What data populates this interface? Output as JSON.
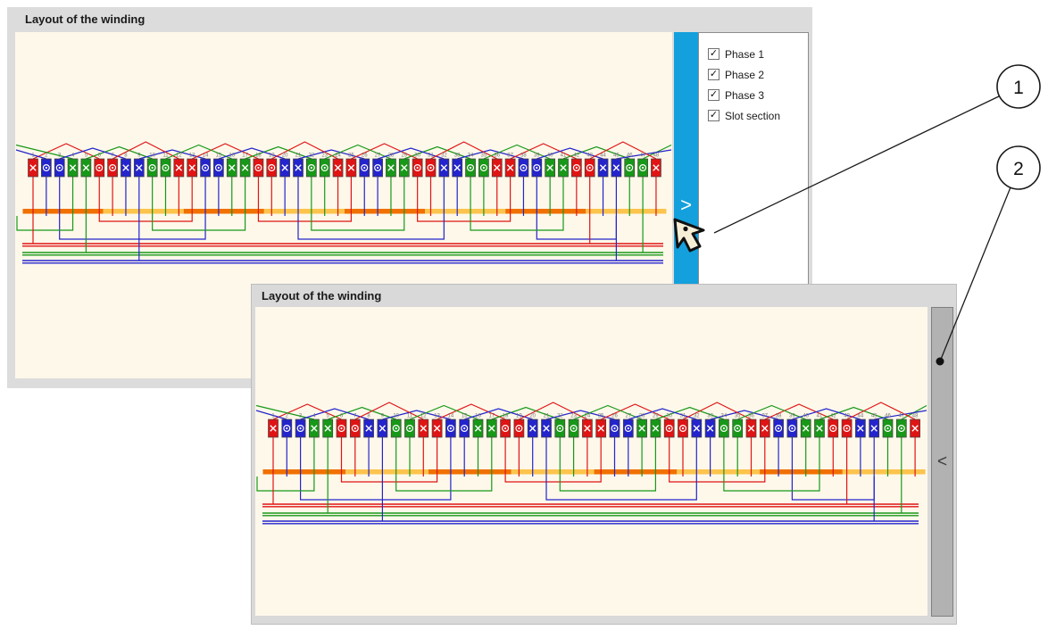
{
  "window1": {
    "title": "Layout of the winding",
    "expander_chevron": ">",
    "legend": {
      "items": [
        {
          "label": "Phase 1",
          "checked": true
        },
        {
          "label": "Phase 2",
          "checked": true
        },
        {
          "label": "Phase 3",
          "checked": true
        },
        {
          "label": "Slot section",
          "checked": true
        }
      ]
    }
  },
  "window2": {
    "title": "Layout of the winding",
    "collapse_chevron": "<"
  },
  "callouts": [
    {
      "label": "1"
    },
    {
      "label": "2"
    }
  ],
  "icons": {
    "checkbox_check": "✓"
  },
  "colors": {
    "expander_blue": "#14a0dc",
    "panel_gray": "#dcdcdc",
    "plot_cream": "#fdf8ea",
    "collapser_gray": "#b2b2b2"
  },
  "diagram": {
    "slot_count": 48,
    "coil_span": 5,
    "slots_per_section": 6,
    "phase_colors": {
      "1": "#e01414",
      "2": "#2424cc",
      "3": "#189818"
    },
    "slot_section_colors": [
      "#f07000",
      "#fcc44c"
    ],
    "bus_colors": [
      "#e01414",
      "#189818",
      "#2424cc"
    ],
    "symbols": {
      "in": "X",
      "out": "O"
    },
    "slots": [
      {
        "n": 1,
        "phase": 1,
        "dir": "X"
      },
      {
        "n": 2,
        "phase": 2,
        "dir": "O"
      },
      {
        "n": 3,
        "phase": 2,
        "dir": "O"
      },
      {
        "n": 4,
        "phase": 3,
        "dir": "X"
      },
      {
        "n": 5,
        "phase": 3,
        "dir": "X"
      },
      {
        "n": 6,
        "phase": 1,
        "dir": "O"
      },
      {
        "n": 7,
        "phase": 1,
        "dir": "O"
      },
      {
        "n": 8,
        "phase": 2,
        "dir": "X"
      },
      {
        "n": 9,
        "phase": 2,
        "dir": "X"
      },
      {
        "n": 10,
        "phase": 3,
        "dir": "O"
      },
      {
        "n": 11,
        "phase": 3,
        "dir": "O"
      },
      {
        "n": 12,
        "phase": 1,
        "dir": "X"
      },
      {
        "n": 13,
        "phase": 1,
        "dir": "X"
      },
      {
        "n": 14,
        "phase": 2,
        "dir": "O"
      },
      {
        "n": 15,
        "phase": 2,
        "dir": "O"
      },
      {
        "n": 16,
        "phase": 3,
        "dir": "X"
      },
      {
        "n": 17,
        "phase": 3,
        "dir": "X"
      },
      {
        "n": 18,
        "phase": 1,
        "dir": "O"
      },
      {
        "n": 19,
        "phase": 1,
        "dir": "O"
      },
      {
        "n": 20,
        "phase": 2,
        "dir": "X"
      },
      {
        "n": 21,
        "phase": 2,
        "dir": "X"
      },
      {
        "n": 22,
        "phase": 3,
        "dir": "O"
      },
      {
        "n": 23,
        "phase": 3,
        "dir": "O"
      },
      {
        "n": 24,
        "phase": 1,
        "dir": "X"
      },
      {
        "n": 25,
        "phase": 1,
        "dir": "X"
      },
      {
        "n": 26,
        "phase": 2,
        "dir": "O"
      },
      {
        "n": 27,
        "phase": 2,
        "dir": "O"
      },
      {
        "n": 28,
        "phase": 3,
        "dir": "X"
      },
      {
        "n": 29,
        "phase": 3,
        "dir": "X"
      },
      {
        "n": 30,
        "phase": 1,
        "dir": "O"
      },
      {
        "n": 31,
        "phase": 1,
        "dir": "O"
      },
      {
        "n": 32,
        "phase": 2,
        "dir": "X"
      },
      {
        "n": 33,
        "phase": 2,
        "dir": "X"
      },
      {
        "n": 34,
        "phase": 3,
        "dir": "O"
      },
      {
        "n": 35,
        "phase": 3,
        "dir": "O"
      },
      {
        "n": 36,
        "phase": 1,
        "dir": "X"
      },
      {
        "n": 37,
        "phase": 1,
        "dir": "X"
      },
      {
        "n": 38,
        "phase": 2,
        "dir": "O"
      },
      {
        "n": 39,
        "phase": 2,
        "dir": "O"
      },
      {
        "n": 40,
        "phase": 3,
        "dir": "X"
      },
      {
        "n": 41,
        "phase": 3,
        "dir": "X"
      },
      {
        "n": 42,
        "phase": 1,
        "dir": "O"
      },
      {
        "n": 43,
        "phase": 1,
        "dir": "O"
      },
      {
        "n": 44,
        "phase": 2,
        "dir": "X"
      },
      {
        "n": 45,
        "phase": 2,
        "dir": "X"
      },
      {
        "n": 46,
        "phase": 3,
        "dir": "O"
      },
      {
        "n": 47,
        "phase": 3,
        "dir": "O"
      },
      {
        "n": 48,
        "phase": 1,
        "dir": "X"
      }
    ]
  }
}
